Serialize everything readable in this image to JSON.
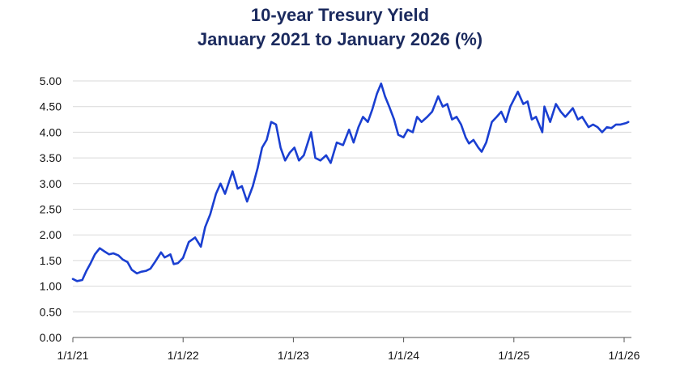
{
  "chart_data": {
    "type": "line",
    "title": "10-year Tresury Yield",
    "subtitle": "January 2021 to January 2026 (%)",
    "xlabel": "",
    "ylabel": "",
    "ylim": [
      0,
      5
    ],
    "y_ticks": [
      "0.00",
      "0.50",
      "1.00",
      "1.50",
      "2.00",
      "2.50",
      "3.00",
      "3.50",
      "4.00",
      "4.50",
      "5.00"
    ],
    "x_ticks": [
      "1/1/21",
      "1/1/22",
      "1/1/23",
      "1/1/24",
      "1/1/25",
      "1/1/26"
    ],
    "grid": true,
    "legend": "none",
    "series": [
      {
        "color": "#1a3fd1",
        "points": [
          [
            "2021-01-01",
            1.14
          ],
          [
            "2021-01-15",
            1.1
          ],
          [
            "2021-02-01",
            1.12
          ],
          [
            "2021-02-15",
            1.3
          ],
          [
            "2021-03-01",
            1.45
          ],
          [
            "2021-03-15",
            1.62
          ],
          [
            "2021-03-31",
            1.74
          ],
          [
            "2021-04-15",
            1.68
          ],
          [
            "2021-05-01",
            1.62
          ],
          [
            "2021-05-15",
            1.64
          ],
          [
            "2021-06-01",
            1.6
          ],
          [
            "2021-06-15",
            1.52
          ],
          [
            "2021-07-01",
            1.47
          ],
          [
            "2021-07-15",
            1.32
          ],
          [
            "2021-08-01",
            1.25
          ],
          [
            "2021-08-15",
            1.28
          ],
          [
            "2021-09-01",
            1.3
          ],
          [
            "2021-09-15",
            1.34
          ],
          [
            "2021-10-01",
            1.48
          ],
          [
            "2021-10-20",
            1.66
          ],
          [
            "2021-11-01",
            1.56
          ],
          [
            "2021-11-20",
            1.62
          ],
          [
            "2021-12-01",
            1.43
          ],
          [
            "2021-12-15",
            1.45
          ],
          [
            "2022-01-01",
            1.55
          ],
          [
            "2022-01-20",
            1.86
          ],
          [
            "2022-02-10",
            1.95
          ],
          [
            "2022-03-01",
            1.77
          ],
          [
            "2022-03-15",
            2.15
          ],
          [
            "2022-04-01",
            2.4
          ],
          [
            "2022-04-20",
            2.8
          ],
          [
            "2022-05-05",
            3.0
          ],
          [
            "2022-05-20",
            2.8
          ],
          [
            "2022-06-14",
            3.24
          ],
          [
            "2022-07-01",
            2.9
          ],
          [
            "2022-07-15",
            2.95
          ],
          [
            "2022-08-01",
            2.65
          ],
          [
            "2022-08-20",
            2.95
          ],
          [
            "2022-09-05",
            3.3
          ],
          [
            "2022-09-20",
            3.7
          ],
          [
            "2022-10-05",
            3.85
          ],
          [
            "2022-10-20",
            4.2
          ],
          [
            "2022-11-05",
            4.15
          ],
          [
            "2022-11-20",
            3.7
          ],
          [
            "2022-12-05",
            3.45
          ],
          [
            "2022-12-20",
            3.6
          ],
          [
            "2023-01-05",
            3.7
          ],
          [
            "2023-01-20",
            3.45
          ],
          [
            "2023-02-05",
            3.55
          ],
          [
            "2023-03-01",
            4.0
          ],
          [
            "2023-03-15",
            3.5
          ],
          [
            "2023-04-01",
            3.45
          ],
          [
            "2023-04-20",
            3.55
          ],
          [
            "2023-05-05",
            3.4
          ],
          [
            "2023-05-25",
            3.8
          ],
          [
            "2023-06-15",
            3.75
          ],
          [
            "2023-07-05",
            4.05
          ],
          [
            "2023-07-20",
            3.8
          ],
          [
            "2023-08-05",
            4.1
          ],
          [
            "2023-08-20",
            4.3
          ],
          [
            "2023-09-05",
            4.2
          ],
          [
            "2023-09-20",
            4.45
          ],
          [
            "2023-10-05",
            4.75
          ],
          [
            "2023-10-19",
            4.95
          ],
          [
            "2023-11-01",
            4.7
          ],
          [
            "2023-11-15",
            4.5
          ],
          [
            "2023-12-01",
            4.25
          ],
          [
            "2023-12-15",
            3.95
          ],
          [
            "2024-01-01",
            3.9
          ],
          [
            "2024-01-15",
            4.05
          ],
          [
            "2024-02-01",
            4.0
          ],
          [
            "2024-02-15",
            4.3
          ],
          [
            "2024-03-01",
            4.2
          ],
          [
            "2024-03-20",
            4.3
          ],
          [
            "2024-04-05",
            4.4
          ],
          [
            "2024-04-25",
            4.7
          ],
          [
            "2024-05-10",
            4.5
          ],
          [
            "2024-05-25",
            4.55
          ],
          [
            "2024-06-10",
            4.25
          ],
          [
            "2024-06-25",
            4.3
          ],
          [
            "2024-07-10",
            4.15
          ],
          [
            "2024-07-25",
            3.9
          ],
          [
            "2024-08-05",
            3.78
          ],
          [
            "2024-08-20",
            3.85
          ],
          [
            "2024-09-05",
            3.7
          ],
          [
            "2024-09-16",
            3.62
          ],
          [
            "2024-10-01",
            3.8
          ],
          [
            "2024-10-20",
            4.2
          ],
          [
            "2024-11-05",
            4.3
          ],
          [
            "2024-11-20",
            4.4
          ],
          [
            "2024-12-05",
            4.2
          ],
          [
            "2024-12-20",
            4.5
          ],
          [
            "2025-01-14",
            4.79
          ],
          [
            "2025-02-01",
            4.55
          ],
          [
            "2025-02-15",
            4.6
          ],
          [
            "2025-03-01",
            4.25
          ],
          [
            "2025-03-15",
            4.3
          ],
          [
            "2025-04-05",
            4.0
          ],
          [
            "2025-04-12",
            4.5
          ],
          [
            "2025-05-01",
            4.2
          ],
          [
            "2025-05-20",
            4.55
          ],
          [
            "2025-06-05",
            4.4
          ],
          [
            "2025-06-20",
            4.3
          ],
          [
            "2025-07-05",
            4.4
          ],
          [
            "2025-07-15",
            4.47
          ],
          [
            "2025-08-01",
            4.25
          ],
          [
            "2025-08-15",
            4.3
          ],
          [
            "2025-09-05",
            4.1
          ],
          [
            "2025-09-20",
            4.15
          ],
          [
            "2025-10-05",
            4.1
          ],
          [
            "2025-10-20",
            4.0
          ],
          [
            "2025-11-05",
            4.1
          ],
          [
            "2025-11-20",
            4.08
          ],
          [
            "2025-12-05",
            4.15
          ],
          [
            "2025-12-20",
            4.15
          ],
          [
            "2026-01-08",
            4.18
          ],
          [
            "2026-01-15",
            4.2
          ]
        ]
      }
    ]
  }
}
